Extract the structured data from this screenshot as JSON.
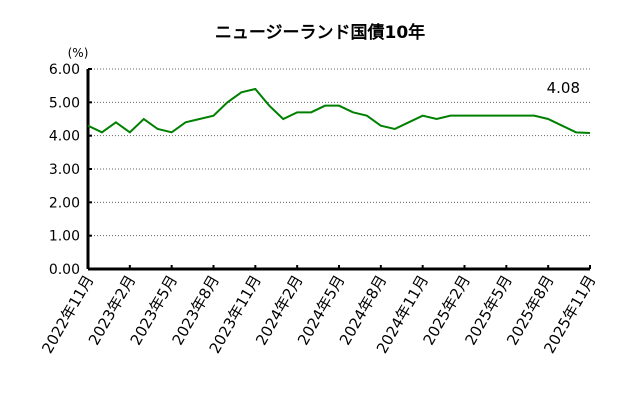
{
  "chart_data": {
    "type": "line",
    "title": "ニュージーランド国債10年",
    "y_label": "(%)",
    "categories": [
      "2022年11月",
      null,
      null,
      "2023年2月",
      null,
      null,
      "2023年5月",
      null,
      null,
      "2023年8月",
      null,
      null,
      "2023年11月",
      null,
      null,
      "2024年2月",
      null,
      null,
      "2024年5月",
      null,
      null,
      "2024年8月",
      null,
      null,
      "2024年11月",
      null,
      null,
      "2025年2月",
      null,
      null,
      "2025年5月",
      null,
      null,
      "2025年8月",
      null,
      null,
      "2025年11月"
    ],
    "series": [
      {
        "name": "ニュージーランド国債10年",
        "color": "#008000",
        "values": [
          4.3,
          4.1,
          4.4,
          4.1,
          4.5,
          4.2,
          4.1,
          4.4,
          4.5,
          4.6,
          5.0,
          5.3,
          5.4,
          4.9,
          4.5,
          4.7,
          4.7,
          4.9,
          4.9,
          4.7,
          4.6,
          4.3,
          4.2,
          4.4,
          4.6,
          4.5,
          4.6,
          4.6,
          4.6,
          4.6,
          4.6,
          4.6,
          4.6,
          4.5,
          4.3,
          4.1,
          4.08
        ],
        "value_labels": [
          null,
          null,
          null,
          null,
          null,
          null,
          null,
          null,
          null,
          null,
          null,
          null,
          null,
          null,
          null,
          null,
          null,
          null,
          null,
          null,
          null,
          null,
          null,
          null,
          null,
          null,
          null,
          null,
          null,
          null,
          null,
          null,
          null,
          null,
          null,
          null,
          "4.08"
        ]
      }
    ],
    "ylim": [
      0,
      6
    ],
    "yticks": [
      {
        "value": 0,
        "label": "0.00"
      },
      {
        "value": 1,
        "label": "1.00"
      },
      {
        "value": 2,
        "label": "2.00"
      },
      {
        "value": 3,
        "label": "3.00"
      },
      {
        "value": 4,
        "label": "4.00"
      },
      {
        "value": 5,
        "label": "5.00"
      },
      {
        "value": 6,
        "label": "6.00"
      }
    ],
    "grid": true
  }
}
